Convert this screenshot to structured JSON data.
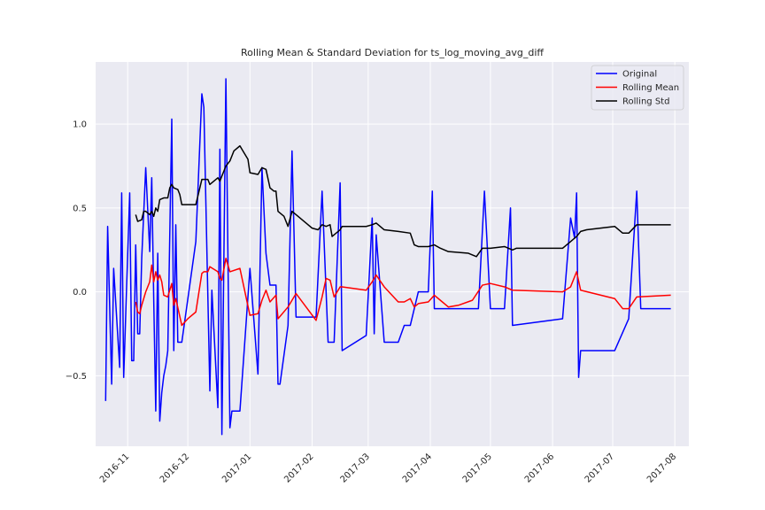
{
  "colors": {
    "background": "#eaeaf2",
    "grid": "#ffffff",
    "original": "#0000ff",
    "rolling_mean": "#ff0000",
    "rolling_std": "#000000"
  },
  "chart_data": {
    "type": "line",
    "title": "Rolling Mean & Standard Deviation for ts_log_moving_avg_diff",
    "xlabel": "",
    "ylabel": "",
    "xlim": [
      "2016-10-16",
      "2017-08-08"
    ],
    "ylim": [
      -0.92,
      1.37
    ],
    "grid": true,
    "legend_position": "top-right",
    "x_ticks": [
      "2016-11",
      "2016-12",
      "2017-01",
      "2017-02",
      "2017-03",
      "2017-04",
      "2017-05",
      "2017-06",
      "2017-07",
      "2017-08"
    ],
    "y_ticks": [
      -0.5,
      0.0,
      0.5,
      1.0
    ],
    "y_tick_labels": [
      "−0.5",
      "0.0",
      "0.5",
      "1.0"
    ],
    "series": [
      {
        "name": "Original",
        "color": "#0000ff",
        "points": [
          [
            "2016-10-21",
            -0.65
          ],
          [
            "2016-10-22",
            0.39
          ],
          [
            "2016-10-24",
            -0.55
          ],
          [
            "2016-10-25",
            0.14
          ],
          [
            "2016-10-28",
            -0.45
          ],
          [
            "2016-10-29",
            0.59
          ],
          [
            "2016-10-30",
            -0.51
          ],
          [
            "2016-11-02",
            0.59
          ],
          [
            "2016-11-03",
            -0.41
          ],
          [
            "2016-11-04",
            -0.41
          ],
          [
            "2016-11-05",
            0.28
          ],
          [
            "2016-11-06",
            -0.25
          ],
          [
            "2016-11-07",
            -0.25
          ],
          [
            "2016-11-08",
            0.2
          ],
          [
            "2016-11-10",
            0.74
          ],
          [
            "2016-11-12",
            0.24
          ],
          [
            "2016-11-13",
            0.68
          ],
          [
            "2016-11-14",
            -0.05
          ],
          [
            "2016-11-15",
            -0.71
          ],
          [
            "2016-11-16",
            0.23
          ],
          [
            "2016-11-17",
            -0.77
          ],
          [
            "2016-11-18",
            -0.6
          ],
          [
            "2016-11-19",
            -0.5
          ],
          [
            "2016-11-20",
            -0.44
          ],
          [
            "2016-11-21",
            -0.35
          ],
          [
            "2016-11-23",
            1.03
          ],
          [
            "2016-11-24",
            -0.35
          ],
          [
            "2016-11-25",
            0.4
          ],
          [
            "2016-11-26",
            -0.3
          ],
          [
            "2016-11-28",
            -0.3
          ],
          [
            "2016-12-05",
            0.3
          ],
          [
            "2016-12-08",
            1.18
          ],
          [
            "2016-12-09",
            1.1
          ],
          [
            "2016-12-12",
            -0.59
          ],
          [
            "2016-12-13",
            0.01
          ],
          [
            "2016-12-16",
            -0.69
          ],
          [
            "2016-12-17",
            0.85
          ],
          [
            "2016-12-18",
            -0.85
          ],
          [
            "2016-12-20",
            1.27
          ],
          [
            "2016-12-22",
            -0.81
          ],
          [
            "2016-12-23",
            -0.71
          ],
          [
            "2016-12-27",
            -0.71
          ],
          [
            "2017-01-01",
            0.14
          ],
          [
            "2017-01-05",
            -0.49
          ],
          [
            "2017-01-07",
            0.74
          ],
          [
            "2017-01-09",
            0.23
          ],
          [
            "2017-01-11",
            0.04
          ],
          [
            "2017-01-14",
            0.04
          ],
          [
            "2017-01-15",
            -0.55
          ],
          [
            "2017-01-16",
            -0.55
          ],
          [
            "2017-01-20",
            -0.2
          ],
          [
            "2017-01-22",
            0.84
          ],
          [
            "2017-01-24",
            -0.15
          ],
          [
            "2017-02-03",
            -0.15
          ],
          [
            "2017-02-06",
            0.6
          ],
          [
            "2017-02-09",
            -0.3
          ],
          [
            "2017-02-12",
            -0.3
          ],
          [
            "2017-02-15",
            0.65
          ],
          [
            "2017-02-16",
            -0.35
          ],
          [
            "2017-02-28",
            -0.26
          ],
          [
            "2017-03-03",
            0.44
          ],
          [
            "2017-03-04",
            -0.25
          ],
          [
            "2017-03-05",
            0.34
          ],
          [
            "2017-03-09",
            -0.3
          ],
          [
            "2017-03-16",
            -0.3
          ],
          [
            "2017-03-19",
            -0.2
          ],
          [
            "2017-03-22",
            -0.2
          ],
          [
            "2017-03-26",
            0.0
          ],
          [
            "2017-03-31",
            0.0
          ],
          [
            "2017-04-02",
            0.6
          ],
          [
            "2017-04-03",
            -0.1
          ],
          [
            "2017-04-25",
            -0.1
          ],
          [
            "2017-04-28",
            0.6
          ],
          [
            "2017-05-01",
            -0.1
          ],
          [
            "2017-05-08",
            -0.1
          ],
          [
            "2017-05-11",
            0.5
          ],
          [
            "2017-05-12",
            -0.2
          ],
          [
            "2017-06-06",
            -0.16
          ],
          [
            "2017-06-10",
            0.44
          ],
          [
            "2017-06-12",
            0.32
          ],
          [
            "2017-06-13",
            0.59
          ],
          [
            "2017-06-14",
            -0.51
          ],
          [
            "2017-06-15",
            -0.35
          ],
          [
            "2017-07-02",
            -0.35
          ],
          [
            "2017-07-09",
            -0.16
          ],
          [
            "2017-07-13",
            0.6
          ],
          [
            "2017-07-15",
            -0.1
          ],
          [
            "2017-07-30",
            -0.1
          ]
        ]
      },
      {
        "name": "Rolling Mean",
        "color": "#ff0000",
        "points": [
          [
            "2016-11-05",
            -0.06
          ],
          [
            "2016-11-06",
            -0.12
          ],
          [
            "2016-11-07",
            -0.13
          ],
          [
            "2016-11-08",
            -0.08
          ],
          [
            "2016-11-10",
            0.0
          ],
          [
            "2016-11-12",
            0.06
          ],
          [
            "2016-11-13",
            0.16
          ],
          [
            "2016-11-14",
            0.06
          ],
          [
            "2016-11-15",
            0.12
          ],
          [
            "2016-11-16",
            0.07
          ],
          [
            "2016-11-17",
            0.1
          ],
          [
            "2016-11-18",
            0.06
          ],
          [
            "2016-11-19",
            -0.02
          ],
          [
            "2016-11-21",
            -0.03
          ],
          [
            "2016-11-23",
            0.05
          ],
          [
            "2016-11-24",
            -0.08
          ],
          [
            "2016-11-25",
            -0.04
          ],
          [
            "2016-11-28",
            -0.2
          ],
          [
            "2016-12-01",
            -0.16
          ],
          [
            "2016-12-05",
            -0.12
          ],
          [
            "2016-12-08",
            0.11
          ],
          [
            "2016-12-09",
            0.12
          ],
          [
            "2016-12-11",
            0.12
          ],
          [
            "2016-12-12",
            0.15
          ],
          [
            "2016-12-16",
            0.12
          ],
          [
            "2016-12-17",
            0.08
          ],
          [
            "2016-12-18",
            0.07
          ],
          [
            "2016-12-20",
            0.2
          ],
          [
            "2016-12-22",
            0.12
          ],
          [
            "2016-12-27",
            0.14
          ],
          [
            "2017-01-01",
            -0.14
          ],
          [
            "2017-01-05",
            -0.13
          ],
          [
            "2017-01-07",
            -0.05
          ],
          [
            "2017-01-09",
            0.01
          ],
          [
            "2017-01-11",
            -0.06
          ],
          [
            "2017-01-14",
            -0.02
          ],
          [
            "2017-01-15",
            -0.16
          ],
          [
            "2017-01-20",
            -0.09
          ],
          [
            "2017-01-22",
            -0.05
          ],
          [
            "2017-01-24",
            -0.01
          ],
          [
            "2017-02-03",
            -0.17
          ],
          [
            "2017-02-06",
            -0.03
          ],
          [
            "2017-02-08",
            0.08
          ],
          [
            "2017-02-10",
            0.07
          ],
          [
            "2017-02-12",
            -0.03
          ],
          [
            "2017-02-15",
            0.03
          ],
          [
            "2017-02-16",
            0.03
          ],
          [
            "2017-02-28",
            0.01
          ],
          [
            "2017-03-03",
            0.06
          ],
          [
            "2017-03-05",
            0.1
          ],
          [
            "2017-03-09",
            0.03
          ],
          [
            "2017-03-16",
            -0.06
          ],
          [
            "2017-03-19",
            -0.06
          ],
          [
            "2017-03-22",
            -0.04
          ],
          [
            "2017-03-24",
            -0.09
          ],
          [
            "2017-03-26",
            -0.07
          ],
          [
            "2017-03-31",
            -0.06
          ],
          [
            "2017-04-03",
            -0.02
          ],
          [
            "2017-04-06",
            -0.05
          ],
          [
            "2017-04-10",
            -0.09
          ],
          [
            "2017-04-15",
            -0.08
          ],
          [
            "2017-04-22",
            -0.05
          ],
          [
            "2017-04-27",
            0.04
          ],
          [
            "2017-05-01",
            0.05
          ],
          [
            "2017-05-08",
            0.03
          ],
          [
            "2017-05-12",
            0.01
          ],
          [
            "2017-06-06",
            0.0
          ],
          [
            "2017-06-10",
            0.03
          ],
          [
            "2017-06-13",
            0.12
          ],
          [
            "2017-06-15",
            0.01
          ],
          [
            "2017-07-02",
            -0.04
          ],
          [
            "2017-07-06",
            -0.1
          ],
          [
            "2017-07-09",
            -0.1
          ],
          [
            "2017-07-13",
            -0.03
          ],
          [
            "2017-07-30",
            -0.02
          ]
        ]
      },
      {
        "name": "Rolling Std",
        "color": "#000000",
        "points": [
          [
            "2016-11-05",
            0.46
          ],
          [
            "2016-11-06",
            0.42
          ],
          [
            "2016-11-08",
            0.43
          ],
          [
            "2016-11-09",
            0.48
          ],
          [
            "2016-11-10",
            0.48
          ],
          [
            "2016-11-12",
            0.46
          ],
          [
            "2016-11-13",
            0.48
          ],
          [
            "2016-11-14",
            0.45
          ],
          [
            "2016-11-15",
            0.5
          ],
          [
            "2016-11-16",
            0.48
          ],
          [
            "2016-11-17",
            0.55
          ],
          [
            "2016-11-19",
            0.56
          ],
          [
            "2016-11-21",
            0.56
          ],
          [
            "2016-11-22",
            0.62
          ],
          [
            "2016-11-23",
            0.64
          ],
          [
            "2016-11-24",
            0.62
          ],
          [
            "2016-11-26",
            0.61
          ],
          [
            "2016-11-27",
            0.58
          ],
          [
            "2016-11-28",
            0.52
          ],
          [
            "2016-12-05",
            0.52
          ],
          [
            "2016-12-08",
            0.67
          ],
          [
            "2016-12-11",
            0.67
          ],
          [
            "2016-12-12",
            0.64
          ],
          [
            "2016-12-16",
            0.68
          ],
          [
            "2016-12-17",
            0.66
          ],
          [
            "2016-12-18",
            0.69
          ],
          [
            "2016-12-20",
            0.75
          ],
          [
            "2016-12-22",
            0.78
          ],
          [
            "2016-12-23",
            0.81
          ],
          [
            "2016-12-24",
            0.84
          ],
          [
            "2016-12-27",
            0.87
          ],
          [
            "2016-12-29",
            0.83
          ],
          [
            "2016-12-31",
            0.79
          ],
          [
            "2017-01-01",
            0.71
          ],
          [
            "2017-01-05",
            0.7
          ],
          [
            "2017-01-07",
            0.74
          ],
          [
            "2017-01-09",
            0.73
          ],
          [
            "2017-01-11",
            0.62
          ],
          [
            "2017-01-13",
            0.6
          ],
          [
            "2017-01-14",
            0.6
          ],
          [
            "2017-01-15",
            0.48
          ],
          [
            "2017-01-18",
            0.45
          ],
          [
            "2017-01-20",
            0.39
          ],
          [
            "2017-01-22",
            0.48
          ],
          [
            "2017-01-24",
            0.46
          ],
          [
            "2017-02-01",
            0.38
          ],
          [
            "2017-02-04",
            0.37
          ],
          [
            "2017-02-06",
            0.4
          ],
          [
            "2017-02-08",
            0.39
          ],
          [
            "2017-02-10",
            0.4
          ],
          [
            "2017-02-11",
            0.33
          ],
          [
            "2017-02-15",
            0.37
          ],
          [
            "2017-02-16",
            0.39
          ],
          [
            "2017-02-28",
            0.39
          ],
          [
            "2017-03-03",
            0.4
          ],
          [
            "2017-03-05",
            0.41
          ],
          [
            "2017-03-09",
            0.37
          ],
          [
            "2017-03-16",
            0.36
          ],
          [
            "2017-03-22",
            0.35
          ],
          [
            "2017-03-24",
            0.28
          ],
          [
            "2017-03-26",
            0.27
          ],
          [
            "2017-03-31",
            0.27
          ],
          [
            "2017-04-03",
            0.28
          ],
          [
            "2017-04-06",
            0.26
          ],
          [
            "2017-04-10",
            0.24
          ],
          [
            "2017-04-20",
            0.23
          ],
          [
            "2017-04-24",
            0.21
          ],
          [
            "2017-04-27",
            0.26
          ],
          [
            "2017-05-01",
            0.26
          ],
          [
            "2017-05-08",
            0.27
          ],
          [
            "2017-05-12",
            0.25
          ],
          [
            "2017-05-14",
            0.26
          ],
          [
            "2017-06-06",
            0.26
          ],
          [
            "2017-06-10",
            0.3
          ],
          [
            "2017-06-13",
            0.33
          ],
          [
            "2017-06-15",
            0.36
          ],
          [
            "2017-06-18",
            0.37
          ],
          [
            "2017-07-02",
            0.39
          ],
          [
            "2017-07-06",
            0.35
          ],
          [
            "2017-07-09",
            0.35
          ],
          [
            "2017-07-13",
            0.4
          ],
          [
            "2017-07-30",
            0.4
          ]
        ]
      }
    ]
  }
}
